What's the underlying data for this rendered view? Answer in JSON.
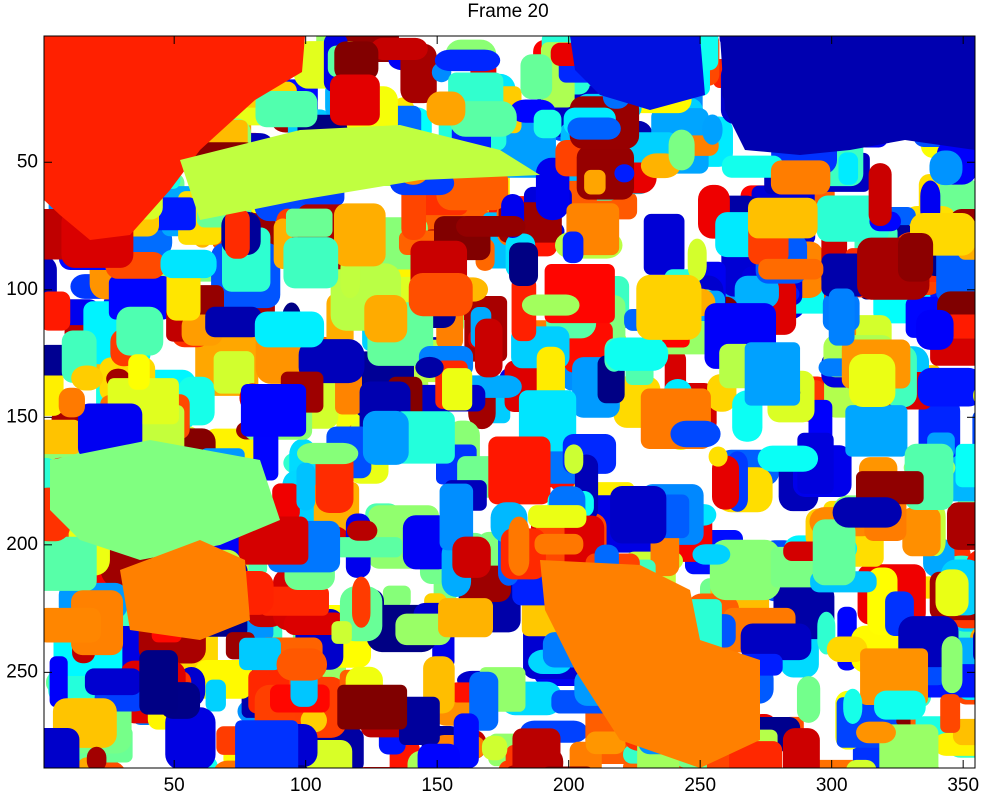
{
  "chart_data": {
    "type": "image",
    "title": "Frame 20",
    "xlim": [
      0.5,
      354.5
    ],
    "ylim": [
      0.5,
      287.5
    ],
    "y_direction": "reverse",
    "xticks": [
      50,
      100,
      150,
      200,
      250,
      300,
      350
    ],
    "yticks": [
      50,
      100,
      150,
      200,
      250
    ],
    "colormap": "jet"
  }
}
